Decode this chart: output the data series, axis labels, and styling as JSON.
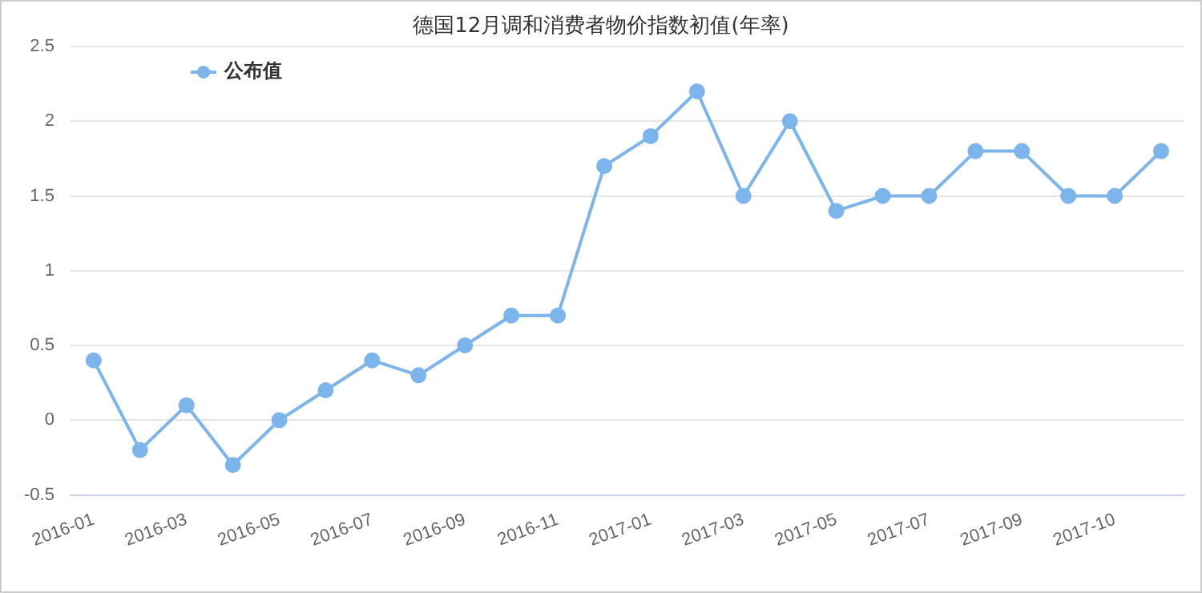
{
  "chart_data": {
    "type": "line",
    "title": "德国12月调和消费者物价指数初值(年率)",
    "categories": [
      "2016-01",
      null,
      "2016-03",
      null,
      "2016-05",
      null,
      "2016-07",
      null,
      "2016-09",
      null,
      "2016-11",
      null,
      "2017-01",
      null,
      "2017-03",
      null,
      "2017-05",
      null,
      "2017-07",
      null,
      "2017-09",
      null,
      "2017-10",
      null
    ],
    "series": [
      {
        "name": "公布值",
        "color": "#7cb5ec",
        "values": [
          0.4,
          -0.2,
          0.1,
          -0.3,
          0,
          0.2,
          0.4,
          0.3,
          0.5,
          0.7,
          0.7,
          1.7,
          1.9,
          2.2,
          1.5,
          2.0,
          1.4,
          1.5,
          1.5,
          1.8,
          1.8,
          1.5,
          1.5,
          1.8
        ]
      }
    ],
    "ylim": [
      -0.5,
      2.5
    ],
    "yticks": [
      -0.5,
      0,
      0.5,
      1,
      1.5,
      2,
      2.5
    ],
    "grid": "y",
    "legend": "top left",
    "marker": "circle",
    "line_style": "solid"
  }
}
